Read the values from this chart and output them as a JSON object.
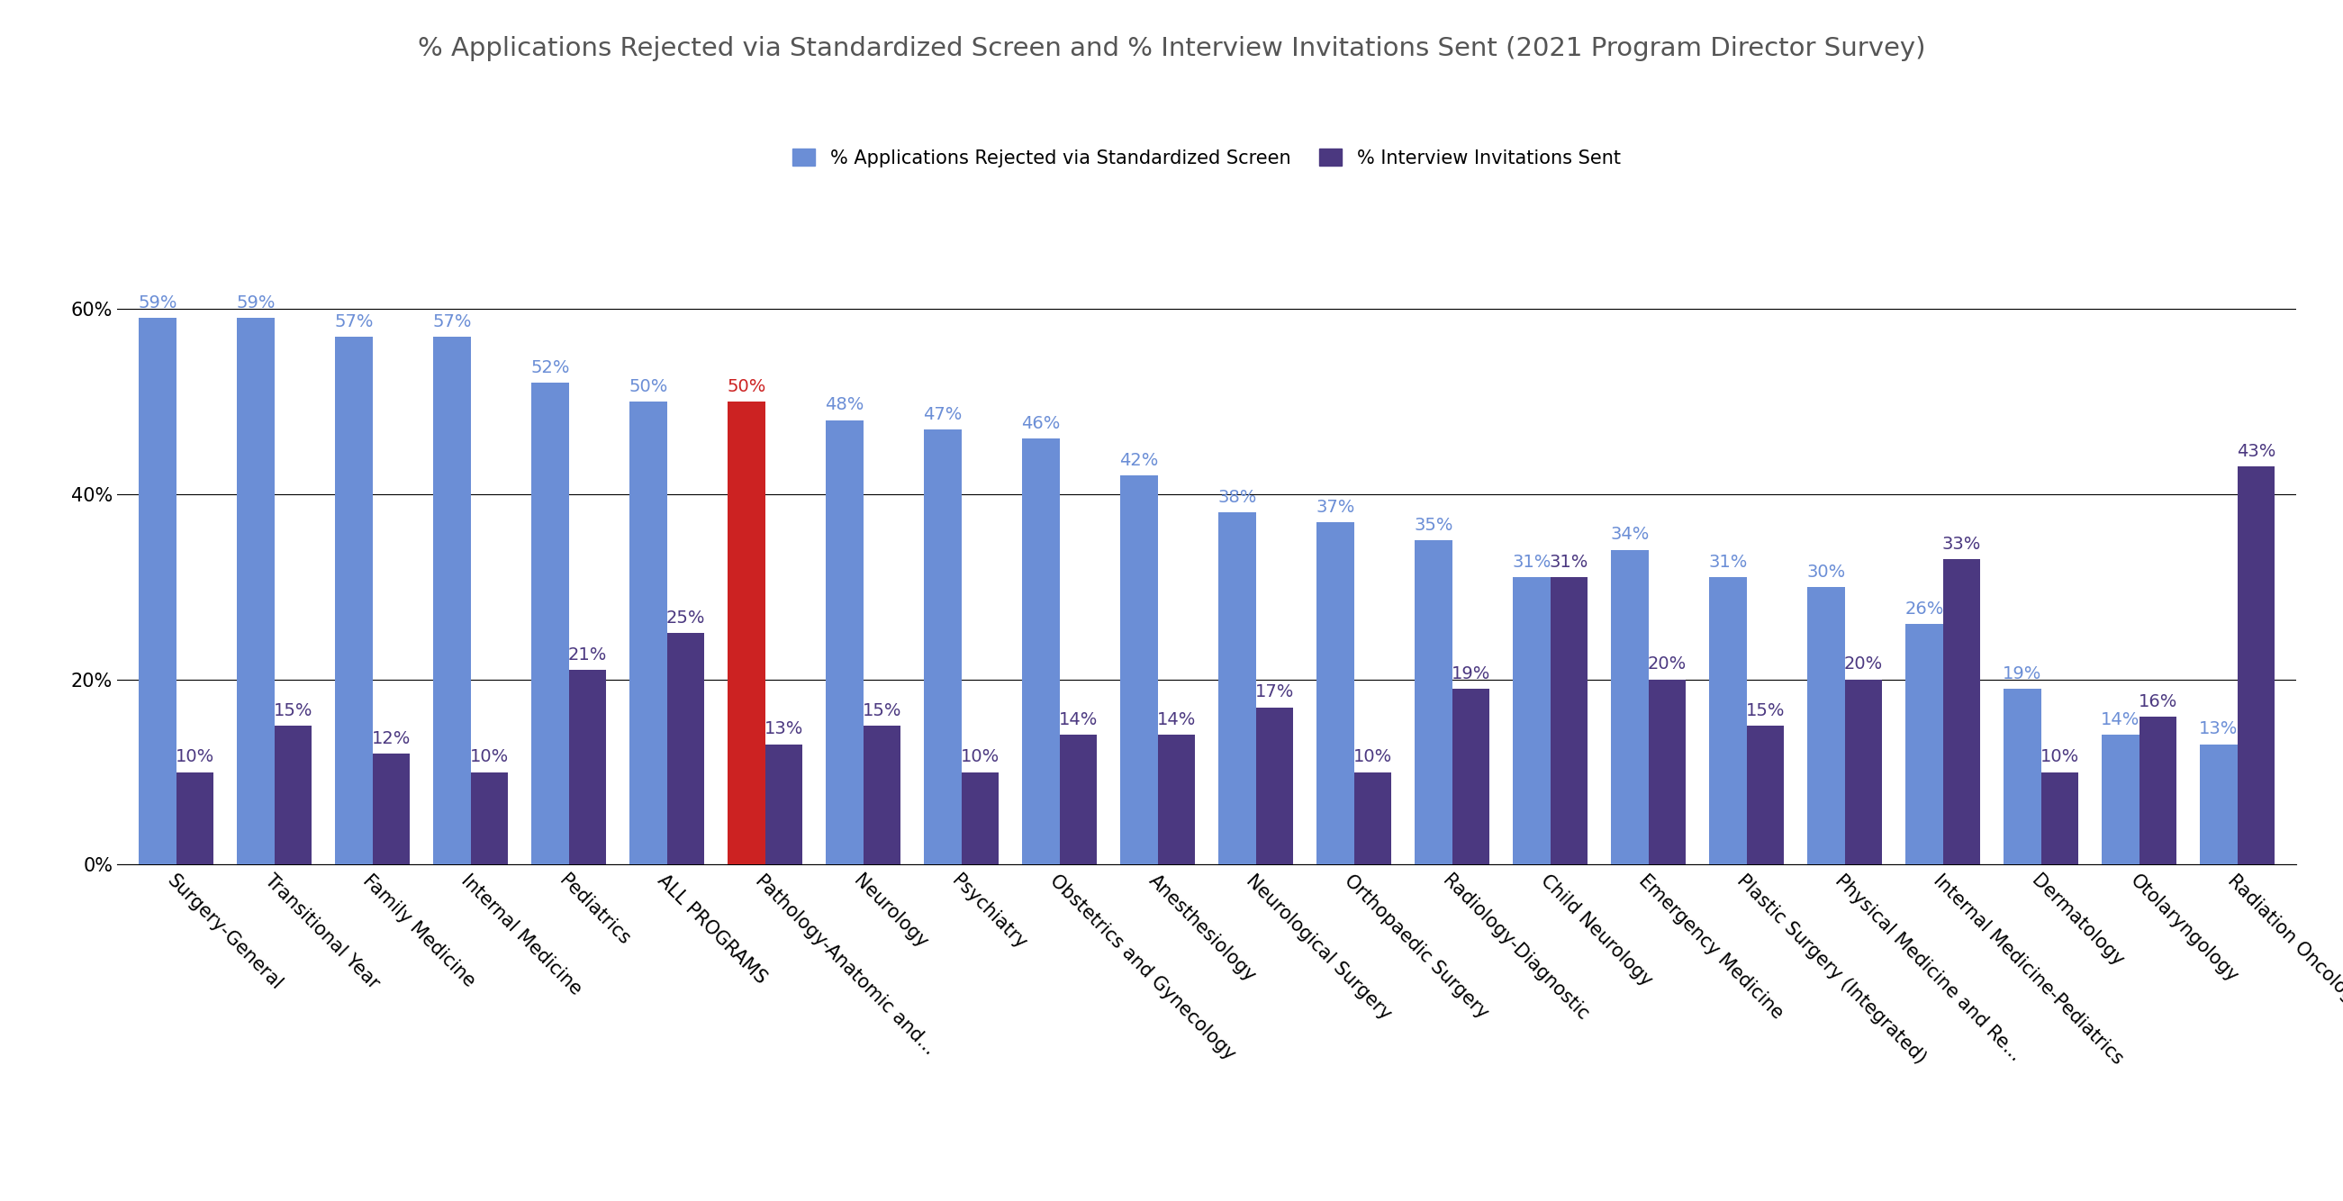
{
  "title": "% Applications Rejected via Standardized Screen and % Interview Invitations Sent (2021 Program Director Survey)",
  "categories": [
    "Surgery-General",
    "Transitional Year",
    "Family Medicine",
    "Internal Medicine",
    "Pediatrics",
    "ALL PROGRAMS",
    "Pathology-Anatomic and...",
    "Neurology",
    "Psychiatry",
    "Obstetrics and Gynecology",
    "Anesthesiology",
    "Neurological Surgery",
    "Orthopaedic Surgery",
    "Radiology-Diagnostic",
    "Child Neurology",
    "Emergency Medicine",
    "Plastic Surgery (Integrated)",
    "Physical Medicine and Re...",
    "Internal Medicine-Pediatrics",
    "Dermatology",
    "Otolaryngology",
    "Radiation Oncology"
  ],
  "screen_values": [
    59,
    59,
    57,
    57,
    52,
    50,
    50,
    48,
    47,
    46,
    42,
    38,
    37,
    35,
    31,
    34,
    31,
    30,
    26,
    19,
    14,
    13
  ],
  "interview_values": [
    10,
    15,
    12,
    10,
    21,
    25,
    13,
    15,
    10,
    14,
    14,
    17,
    10,
    19,
    31,
    20,
    15,
    20,
    33,
    10,
    16,
    43
  ],
  "screen_color_default": "#6B8ED6",
  "screen_color_highlight": "#CC2222",
  "interview_color": "#4B3880",
  "highlight_index": 6,
  "legend_screen_label": "% Applications Rejected via Standardized Screen",
  "legend_interview_label": "% Interview Invitations Sent",
  "yticks": [
    0,
    20,
    40,
    60
  ],
  "ytick_labels": [
    "0%",
    "20%",
    "40%",
    "60%"
  ],
  "ylim": [
    0,
    70
  ],
  "bar_width": 0.38,
  "title_fontsize": 21,
  "tick_fontsize": 15,
  "annotation_fontsize": 14,
  "legend_fontsize": 15
}
